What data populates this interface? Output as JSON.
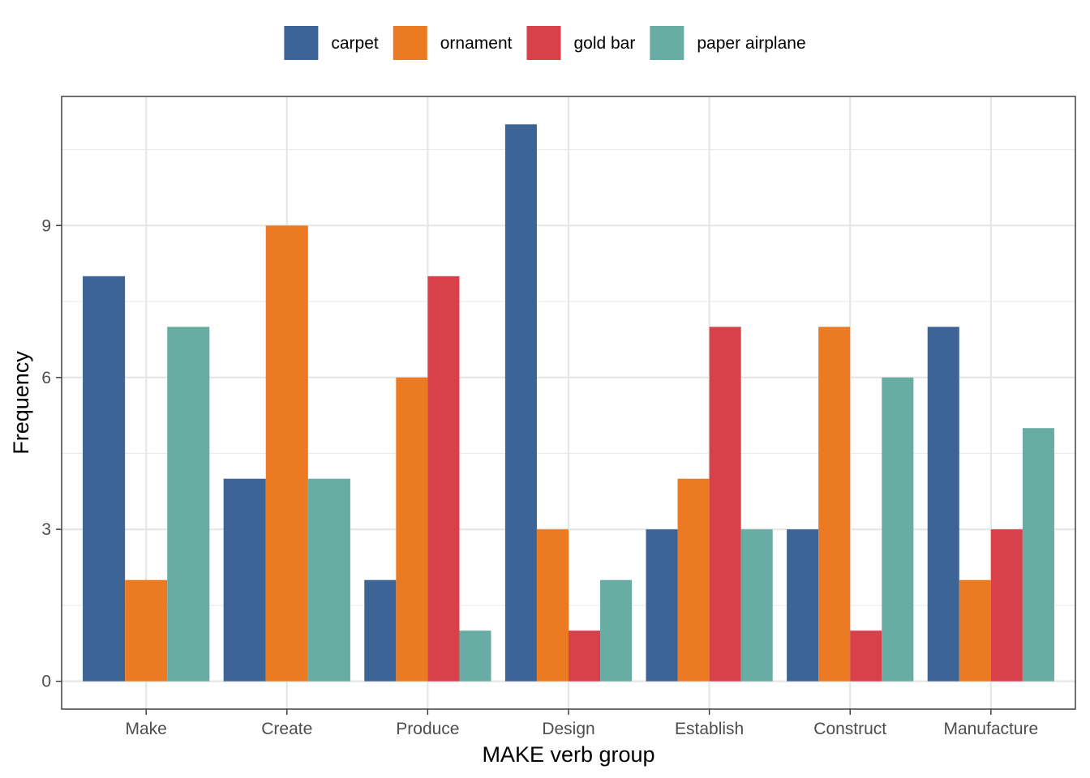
{
  "chart_data": {
    "type": "bar",
    "title": "",
    "xlabel": "MAKE verb group",
    "ylabel": "Frequency",
    "categories": [
      "Make",
      "Create",
      "Produce",
      "Design",
      "Establish",
      "Construct",
      "Manufacture"
    ],
    "series": [
      {
        "name": "carpet",
        "color": "#3d6496",
        "values": [
          8,
          4,
          2,
          11,
          3,
          3,
          7
        ]
      },
      {
        "name": "ornament",
        "color": "#eb7a23",
        "values": [
          2,
          9,
          6,
          3,
          4,
          7,
          2
        ]
      },
      {
        "name": "gold bar",
        "color": "#d8404a",
        "values": [
          null,
          null,
          8,
          1,
          7,
          1,
          3
        ]
      },
      {
        "name": "paper airplane",
        "color": "#67ada3",
        "values": [
          7,
          4,
          1,
          2,
          3,
          6,
          5
        ]
      }
    ],
    "yticks": [
      0,
      3,
      6,
      9
    ],
    "ylim": [
      -0.55,
      11.55
    ],
    "grid": true,
    "legend_position": "top"
  }
}
